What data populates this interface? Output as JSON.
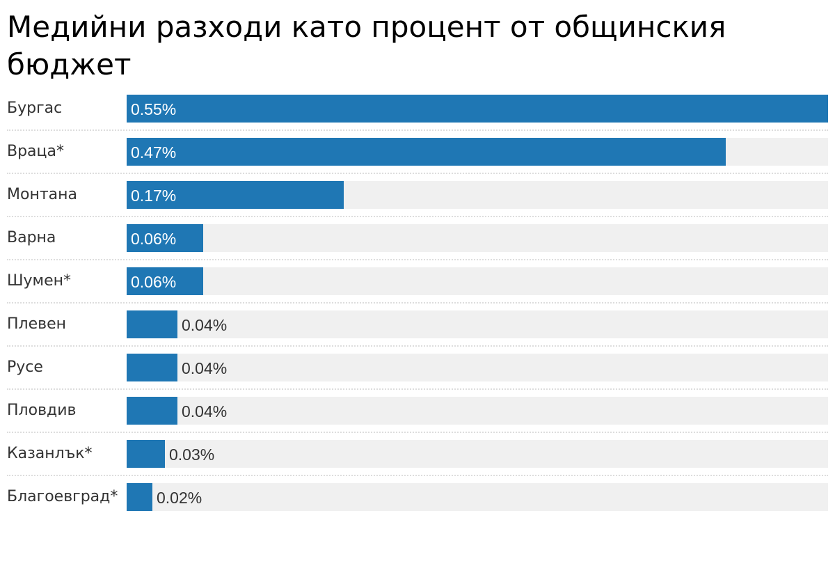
{
  "chart_data": {
    "type": "bar",
    "title": "Медийни разходи като процент от общинския бюджет",
    "categories": [
      "Бургас",
      "Враца*",
      "Монтана",
      "Варна",
      "Шумен*",
      "Плевен",
      "Русе",
      "Пловдив",
      "Казанлък*",
      "Благоевград*"
    ],
    "values": [
      0.55,
      0.47,
      0.17,
      0.06,
      0.06,
      0.04,
      0.04,
      0.04,
      0.03,
      0.02
    ],
    "value_labels": [
      "0.55%",
      "0.47%",
      "0.17%",
      "0.06%",
      "0.06%",
      "0.04%",
      "0.04%",
      "0.04%",
      "0.03%",
      "0.02%"
    ],
    "xlim": [
      0,
      0.55
    ],
    "xlabel": "",
    "ylabel": "",
    "bar_color": "#1f77b4",
    "track_color": "#f0f0f0"
  }
}
